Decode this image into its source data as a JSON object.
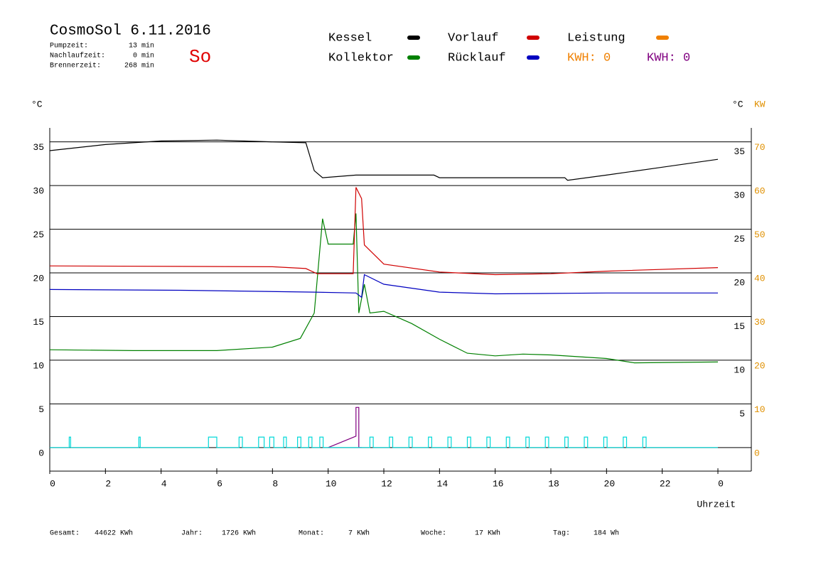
{
  "chart_data": {
    "type": "line",
    "title": "CosmoSol 6.11.2016",
    "day": "So",
    "info": [
      {
        "label": "Pumpzeit:",
        "value": "13 min"
      },
      {
        "label": "Nachlaufzeit:",
        "value": "0 min"
      },
      {
        "label": "Brennerzeit:",
        "value": "268 min"
      }
    ],
    "kwh": [
      {
        "label": "KWH: 0",
        "color": "#f08000"
      },
      {
        "label": "KWH: 0",
        "color": "#800080"
      }
    ],
    "y_label": "°C",
    "y_label_right": "°C",
    "y2_label": "KW",
    "x_label": "Uhrzeit",
    "xlim": [
      0,
      25.2
    ],
    "xticks": [
      0,
      2,
      4,
      6,
      8,
      10,
      12,
      14,
      16,
      18,
      20,
      22,
      {
        "value": 24,
        "label": "0"
      }
    ],
    "ylim": [
      -2.7,
      36.6
    ],
    "yticks": [
      0,
      5,
      10,
      15,
      20,
      25,
      30,
      35
    ],
    "yticks_right": [
      5,
      10,
      15,
      20,
      25,
      30,
      35
    ],
    "y2lim": [
      -5.4,
      73.2
    ],
    "y2ticks": [
      0,
      10,
      20,
      30,
      40,
      50,
      60,
      70
    ],
    "grid": true,
    "series": [
      {
        "name": "Kessel",
        "color": "#000000",
        "x": [
          0,
          2,
          4,
          6,
          8,
          9.2,
          9.5,
          9.8,
          11,
          13.8,
          14,
          18.5,
          18.6,
          20,
          22,
          24
        ],
        "values": [
          34.0,
          34.7,
          35.1,
          35.2,
          35.0,
          34.9,
          31.7,
          30.9,
          31.2,
          31.2,
          30.9,
          30.9,
          30.6,
          31.2,
          32.1,
          33.0
        ]
      },
      {
        "name": "Kollektor",
        "color": "#008000",
        "x": [
          0,
          3,
          6,
          8,
          9,
          9.5,
          9.8,
          10,
          10.9,
          11.0,
          11.1,
          11.3,
          11.5,
          12,
          12.5,
          13,
          14,
          15,
          16,
          17,
          18,
          20,
          21,
          24
        ],
        "values": [
          11.2,
          11.1,
          11.1,
          11.5,
          12.5,
          15.4,
          26.2,
          23.3,
          23.3,
          26.8,
          15.4,
          18.7,
          15.4,
          15.6,
          14.9,
          14.2,
          12.4,
          10.8,
          10.5,
          10.7,
          10.6,
          10.2,
          9.7,
          9.8
        ]
      },
      {
        "name": "Vorlauf",
        "color": "#d00000",
        "x": [
          0,
          8,
          9.2,
          9.6,
          10.9,
          11.0,
          11.2,
          11.3,
          12,
          14,
          16,
          18,
          20,
          24
        ],
        "values": [
          20.8,
          20.7,
          20.5,
          19.9,
          19.9,
          29.8,
          28.5,
          23.2,
          21.0,
          20.1,
          19.8,
          19.9,
          20.2,
          20.6
        ]
      },
      {
        "name": "Rücklauf",
        "color": "#0000c0",
        "x": [
          0,
          5,
          9.5,
          11,
          11.2,
          11.3,
          12,
          14,
          16,
          20,
          24
        ],
        "values": [
          18.1,
          18.0,
          17.8,
          17.7,
          17.2,
          19.8,
          18.7,
          17.8,
          17.6,
          17.7,
          17.7
        ]
      },
      {
        "name": "Leistung",
        "color": "#f08000",
        "x": [],
        "values": []
      },
      {
        "color": "#800080",
        "x": [
          10,
          11.0,
          11.0,
          11.1,
          11.1,
          11.2
        ],
        "values": [
          0,
          1.3,
          4.6,
          4.6,
          0,
          0
        ]
      },
      {
        "color": "#00d8d8",
        "x": [
          0,
          0.7,
          0.7,
          0.75,
          0.75,
          3.2,
          3.2,
          3.25,
          3.25,
          5.7,
          5.7,
          6.0,
          6.0,
          6.8,
          6.8,
          6.92,
          6.92,
          7.5,
          7.5,
          7.7,
          7.7,
          7.9,
          7.9,
          8.05,
          8.05,
          8.4,
          8.4,
          8.5,
          8.5,
          8.9,
          8.9,
          9.02,
          9.02,
          9.3,
          9.3,
          9.42,
          9.42,
          9.7,
          9.7,
          9.82,
          9.82,
          11.5,
          11.5,
          11.62,
          11.62,
          12.2,
          12.2,
          12.32,
          12.32,
          12.9,
          12.9,
          13.02,
          13.02,
          13.6,
          13.6,
          13.72,
          13.72,
          14.3,
          14.3,
          14.42,
          14.42,
          15.0,
          15.0,
          15.12,
          15.12,
          15.7,
          15.7,
          15.82,
          15.82,
          16.4,
          16.4,
          16.52,
          16.52,
          17.1,
          17.1,
          17.22,
          17.22,
          17.8,
          17.8,
          17.92,
          17.92,
          18.5,
          18.5,
          18.62,
          18.62,
          19.2,
          19.2,
          19.32,
          19.32,
          19.9,
          19.9,
          20.02,
          20.02,
          20.6,
          20.6,
          20.72,
          20.72,
          21.3,
          21.3,
          21.42,
          21.42,
          24
        ],
        "values": [
          0,
          0,
          1.2,
          1.2,
          0,
          0,
          1.2,
          1.2,
          0,
          0,
          1.2,
          1.2,
          0,
          0,
          1.2,
          1.2,
          0,
          0,
          1.2,
          1.2,
          0,
          0,
          1.2,
          1.2,
          0,
          0,
          1.2,
          1.2,
          0,
          0,
          1.2,
          1.2,
          0,
          0,
          1.2,
          1.2,
          0,
          0,
          1.2,
          1.2,
          0,
          0,
          1.2,
          1.2,
          0,
          0,
          1.2,
          1.2,
          0,
          0,
          1.2,
          1.2,
          0,
          0,
          1.2,
          1.2,
          0,
          0,
          1.2,
          1.2,
          0,
          0,
          1.2,
          1.2,
          0,
          0,
          1.2,
          1.2,
          0,
          0,
          1.2,
          1.2,
          0,
          0,
          1.2,
          1.2,
          0,
          0,
          1.2,
          1.2,
          0,
          0,
          1.2,
          1.2,
          0,
          0,
          1.2,
          1.2,
          0,
          0,
          1.2,
          1.2,
          0,
          0,
          1.2,
          1.2,
          0,
          0,
          1.2,
          1.2,
          0,
          0
        ]
      }
    ],
    "totals": [
      {
        "label": "Gesamt:",
        "value": "44622 KWh"
      },
      {
        "label": "Jahr:",
        "value": "1726 KWh"
      },
      {
        "label": "Monat:",
        "value": "7 KWh"
      },
      {
        "label": "Woche:",
        "value": "17 KWh"
      },
      {
        "label": "Tag:",
        "value": "184 Wh"
      }
    ]
  }
}
